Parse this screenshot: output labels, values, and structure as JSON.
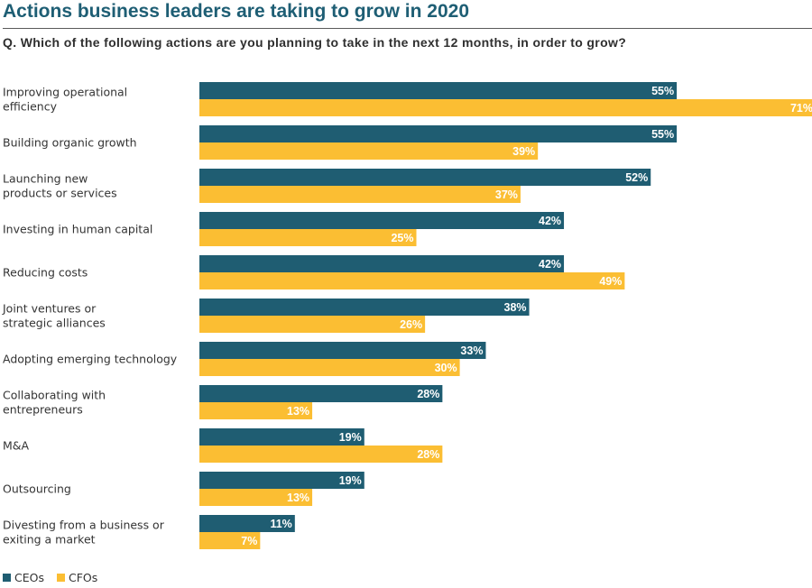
{
  "header": {
    "title": "Actions business leaders are taking to grow in 2020",
    "question": "Q. Which of the following actions are you planning to take in the next 12 months, in order to grow?"
  },
  "colors": {
    "ceo": "#1f5d72",
    "cfo": "#fbbe33",
    "title": "#1e5e74"
  },
  "chart_data": {
    "type": "bar",
    "orientation": "horizontal",
    "title": "Actions business leaders are taking to grow in 2020",
    "subtitle": "Q. Which of the following actions are you planning to take in the next 12 months, in order to grow?",
    "xlabel": "",
    "ylabel": "",
    "value_suffix": "%",
    "xlim": [
      0,
      71
    ],
    "grid": false,
    "legend_position": "bottom-left",
    "categories": [
      [
        "Improving operational",
        "efficiency"
      ],
      [
        "Building organic growth"
      ],
      [
        "Launching new",
        "products or services"
      ],
      [
        "Investing in human capital"
      ],
      [
        "Reducing costs"
      ],
      [
        "Joint ventures or",
        "strategic alliances"
      ],
      [
        "Adopting emerging technology"
      ],
      [
        "Collaborating with",
        "entrepreneurs"
      ],
      [
        "M&A"
      ],
      [
        "Outsourcing"
      ],
      [
        "Divesting from a business or",
        "exiting a market"
      ]
    ],
    "series": [
      {
        "name": "CEOs",
        "color": "#1f5d72",
        "values": [
          55,
          55,
          52,
          42,
          42,
          38,
          33,
          28,
          19,
          19,
          11
        ]
      },
      {
        "name": "CFOs",
        "color": "#fbbe33",
        "values": [
          71,
          39,
          37,
          25,
          49,
          26,
          30,
          13,
          28,
          13,
          7
        ]
      }
    ]
  }
}
